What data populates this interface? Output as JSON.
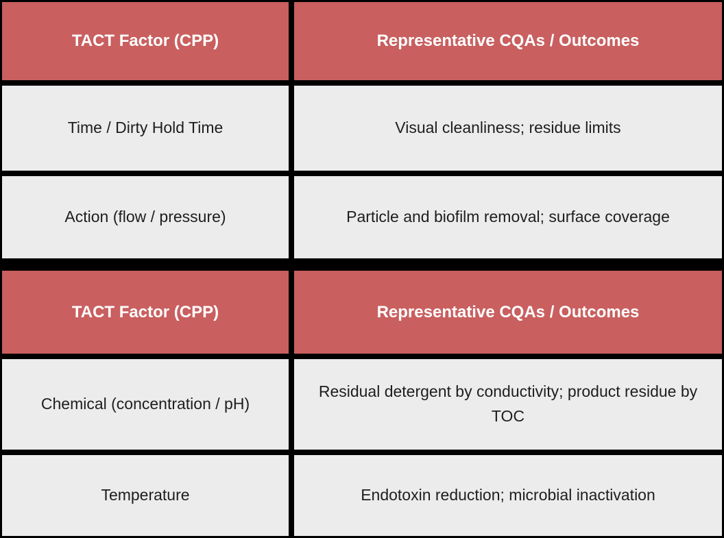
{
  "chart_data": [
    {
      "type": "table",
      "columns": [
        "TACT Factor (CPP)",
        "Representative CQAs / Outcomes"
      ],
      "rows": [
        [
          "Time / Dirty Hold Time",
          "Visual cleanliness; residue limits"
        ],
        [
          "Action (flow / pressure)",
          "Particle and biofilm removal; surface coverage"
        ]
      ]
    },
    {
      "type": "table",
      "columns": [
        "TACT Factor (CPP)",
        "Representative CQAs / Outcomes"
      ],
      "rows": [
        [
          "Chemical (concentration / pH)",
          "Residual detergent by conductivity; product residue by TOC"
        ],
        [
          "Temperature",
          "Endotoxin reduction; microbial inactivation"
        ]
      ]
    }
  ],
  "colors": {
    "header_bg": "#C95F5F",
    "header_text": "#FFFFFF",
    "row_bg": "#ECECEC",
    "row_text": "#1E1E1E",
    "grid_border": "#000000"
  }
}
